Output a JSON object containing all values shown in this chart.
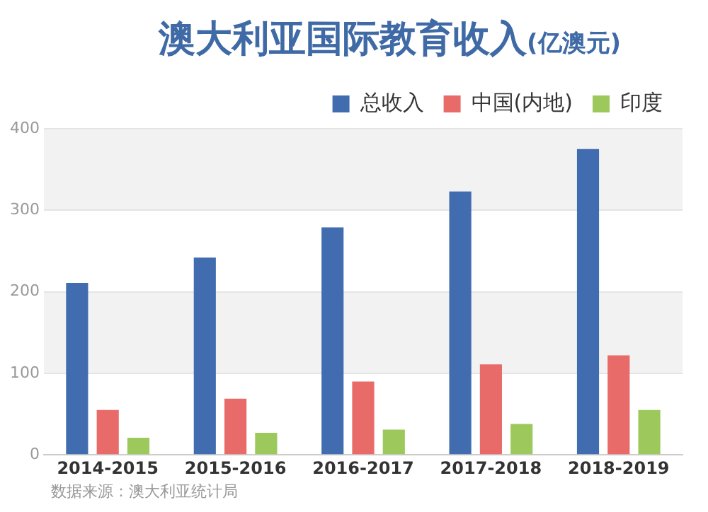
{
  "chart_data": {
    "type": "bar",
    "title": "澳大利亚国际教育收入",
    "subtitle": "(亿澳元)",
    "categories": [
      "2014-2015",
      "2015-2016",
      "2016-2017",
      "2017-2018",
      "2018-2019"
    ],
    "series": [
      {
        "name": "总收入",
        "color": "#416db0",
        "values": [
          211,
          242,
          279,
          323,
          375
        ]
      },
      {
        "name": "中国(内地)",
        "color": "#e96b69",
        "values": [
          55,
          69,
          90,
          111,
          122
        ]
      },
      {
        "name": "印度",
        "color": "#9dc95c",
        "values": [
          21,
          27,
          31,
          38,
          55
        ]
      }
    ],
    "ylim": [
      0,
      400
    ],
    "yticks": [
      0,
      100,
      200,
      300,
      400
    ],
    "grid": "y",
    "legend": "top right",
    "annotations": [
      "数据来源：澳大利亚统计局"
    ]
  }
}
